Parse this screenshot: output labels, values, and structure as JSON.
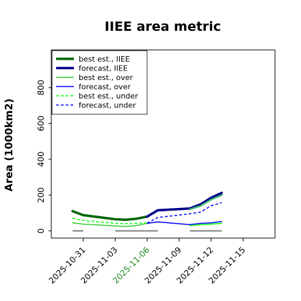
{
  "chart_data": {
    "type": "line",
    "title": "IIEE area metric",
    "xlabel": "",
    "ylabel": "Area (1000km2)",
    "xlim": [
      "2025-10-28",
      "2025-11-18"
    ],
    "ylim": [
      -40,
      1010
    ],
    "yticks": [
      0,
      200,
      400,
      600,
      800
    ],
    "xticks": [
      {
        "date": "2025-10-31",
        "label": "2025-10-31",
        "color": "#000000"
      },
      {
        "date": "2025-11-03",
        "label": "2025-11-03",
        "color": "#000000"
      },
      {
        "date": "2025-11-06",
        "label": "2025-11-06",
        "color": "#228b22"
      },
      {
        "date": "2025-11-09",
        "label": "2025-11-09",
        "color": "#000000"
      },
      {
        "date": "2025-11-12",
        "label": "2025-11-12",
        "color": "#000000"
      },
      {
        "date": "2025-11-15",
        "label": "2025-11-15",
        "color": "#000000"
      }
    ],
    "grid": false,
    "legend_position": "top-left",
    "series": [
      {
        "name": "best est., IIEE",
        "color": "#006400",
        "style": "solid",
        "width": 3.5,
        "x": [
          "2025-10-30",
          "2025-10-31",
          "2025-11-03",
          "2025-11-04",
          "2025-11-05",
          "2025-11-06"
        ],
        "y": [
          110,
          88,
          65,
          62,
          68,
          80
        ]
      },
      {
        "name": "forecast, IIEE",
        "color": "#00008b",
        "style": "solid",
        "width": 3.5,
        "x": [
          "2025-11-06",
          "2025-11-07",
          "2025-11-10",
          "2025-11-11",
          "2025-11-12",
          "2025-11-13"
        ],
        "y": [
          80,
          115,
          125,
          148,
          185,
          212
        ]
      },
      {
        "name": "best est., over",
        "color": "#32cd32",
        "style": "solid",
        "width": 1.5,
        "x": [
          "2025-10-30",
          "2025-10-31",
          "2025-11-03",
          "2025-11-04",
          "2025-11-05",
          "2025-11-06"
        ],
        "y": [
          45,
          38,
          28,
          25,
          30,
          42
        ]
      },
      {
        "name": "forecast, over",
        "color": "#0000ff",
        "style": "solid",
        "width": 1.5,
        "x": [
          "2025-11-06",
          "2025-11-07",
          "2025-11-10",
          "2025-11-11",
          "2025-11-12",
          "2025-11-13"
        ],
        "y": [
          42,
          50,
          35,
          42,
          45,
          52
        ]
      },
      {
        "name": "best est., under",
        "color": "#00ff00",
        "style": "dashed",
        "width": 1.5,
        "x": [
          "2025-10-30",
          "2025-10-31",
          "2025-11-03",
          "2025-11-04",
          "2025-11-05",
          "2025-11-06"
        ],
        "y": [
          70,
          58,
          42,
          40,
          42,
          44
        ]
      },
      {
        "name": "forecast, under",
        "color": "#0000ff",
        "style": "dashed",
        "width": 1.5,
        "x": [
          "2025-11-06",
          "2025-11-07",
          "2025-11-10",
          "2025-11-11",
          "2025-11-12",
          "2025-11-13"
        ],
        "y": [
          44,
          75,
          95,
          105,
          140,
          158
        ]
      },
      {
        "name": "",
        "color": "#3cb371",
        "style": "solid",
        "width": 2.5,
        "x": [
          "2025-11-10",
          "2025-11-11",
          "2025-11-12",
          "2025-11-13"
        ],
        "y": [
          120,
          140,
          175,
          200
        ]
      },
      {
        "name": "",
        "color": "#00ff00",
        "style": "solid",
        "width": 1.5,
        "x": [
          "2025-11-10",
          "2025-11-11",
          "2025-11-12",
          "2025-11-13"
        ],
        "y": [
          30,
          35,
          38,
          42
        ]
      }
    ],
    "reference_segments": [
      {
        "color": "#808080",
        "y": 0,
        "from": "2025-10-30",
        "to": "2025-10-31"
      },
      {
        "color": "#808080",
        "y": 0,
        "from": "2025-11-03",
        "to": "2025-11-07"
      },
      {
        "color": "#808080",
        "y": 0,
        "from": "2025-11-10",
        "to": "2025-11-13"
      }
    ]
  }
}
